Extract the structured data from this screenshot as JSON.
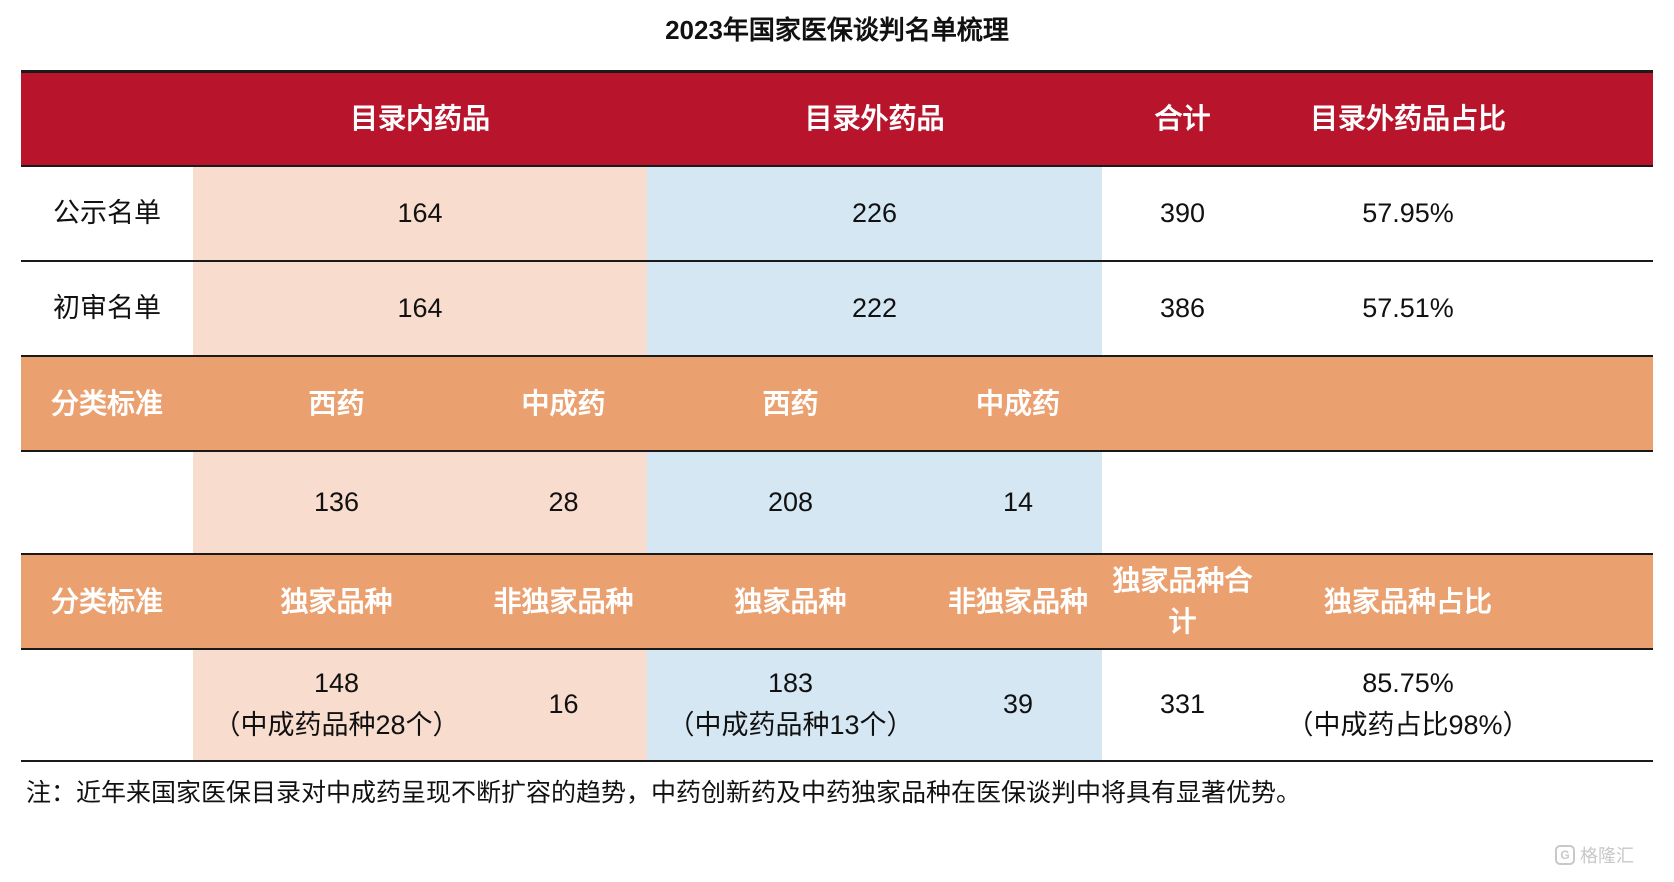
{
  "title": "2023年国家医保谈判名单梳理",
  "header": {
    "col_in": "目录内药品",
    "col_out": "目录外药品",
    "col_total": "合计",
    "col_ratio": "目录外药品占比"
  },
  "rows": [
    {
      "label": "公示名单",
      "in": "164",
      "out": "226",
      "total": "390",
      "ratio": "57.95%"
    },
    {
      "label": "初审名单",
      "in": "164",
      "out": "222",
      "total": "386",
      "ratio": "57.51%"
    }
  ],
  "category_header": {
    "label": "分类标准",
    "in_a": "西药",
    "in_b": "中成药",
    "out_a": "西药",
    "out_b": "中成药"
  },
  "category_row": {
    "in_a": "136",
    "in_b": "28",
    "out_a": "208",
    "out_b": "14"
  },
  "exclusive_header": {
    "label": "分类标准",
    "in_a": "独家品种",
    "in_b": "非独家品种",
    "out_a": "独家品种",
    "out_b": "非独家品种",
    "total_line1": "独家品种合",
    "total_line2": "计",
    "ratio": "独家品种占比"
  },
  "exclusive_row": {
    "in_a_line1": "148",
    "in_a_line2": "（中成药品种28个）",
    "in_b": "16",
    "out_a_line1": "183",
    "out_a_line2": "（中成药品种13个）",
    "out_b": "39",
    "total": "331",
    "ratio_line1": "85.75%",
    "ratio_line2": "（中成药占比98%）"
  },
  "note": "注：近年来国家医保目录对中成药呈现不断扩容的趋势，中药创新药及中药独家品种在医保谈判中将具有显著优势。",
  "watermark": {
    "logo": "G",
    "text": "格隆汇"
  },
  "colors": {
    "header_red": "#b8142c",
    "header_orange": "#eba070",
    "cell_pink": "#f8dccd",
    "cell_blue": "#d6e7f4"
  }
}
